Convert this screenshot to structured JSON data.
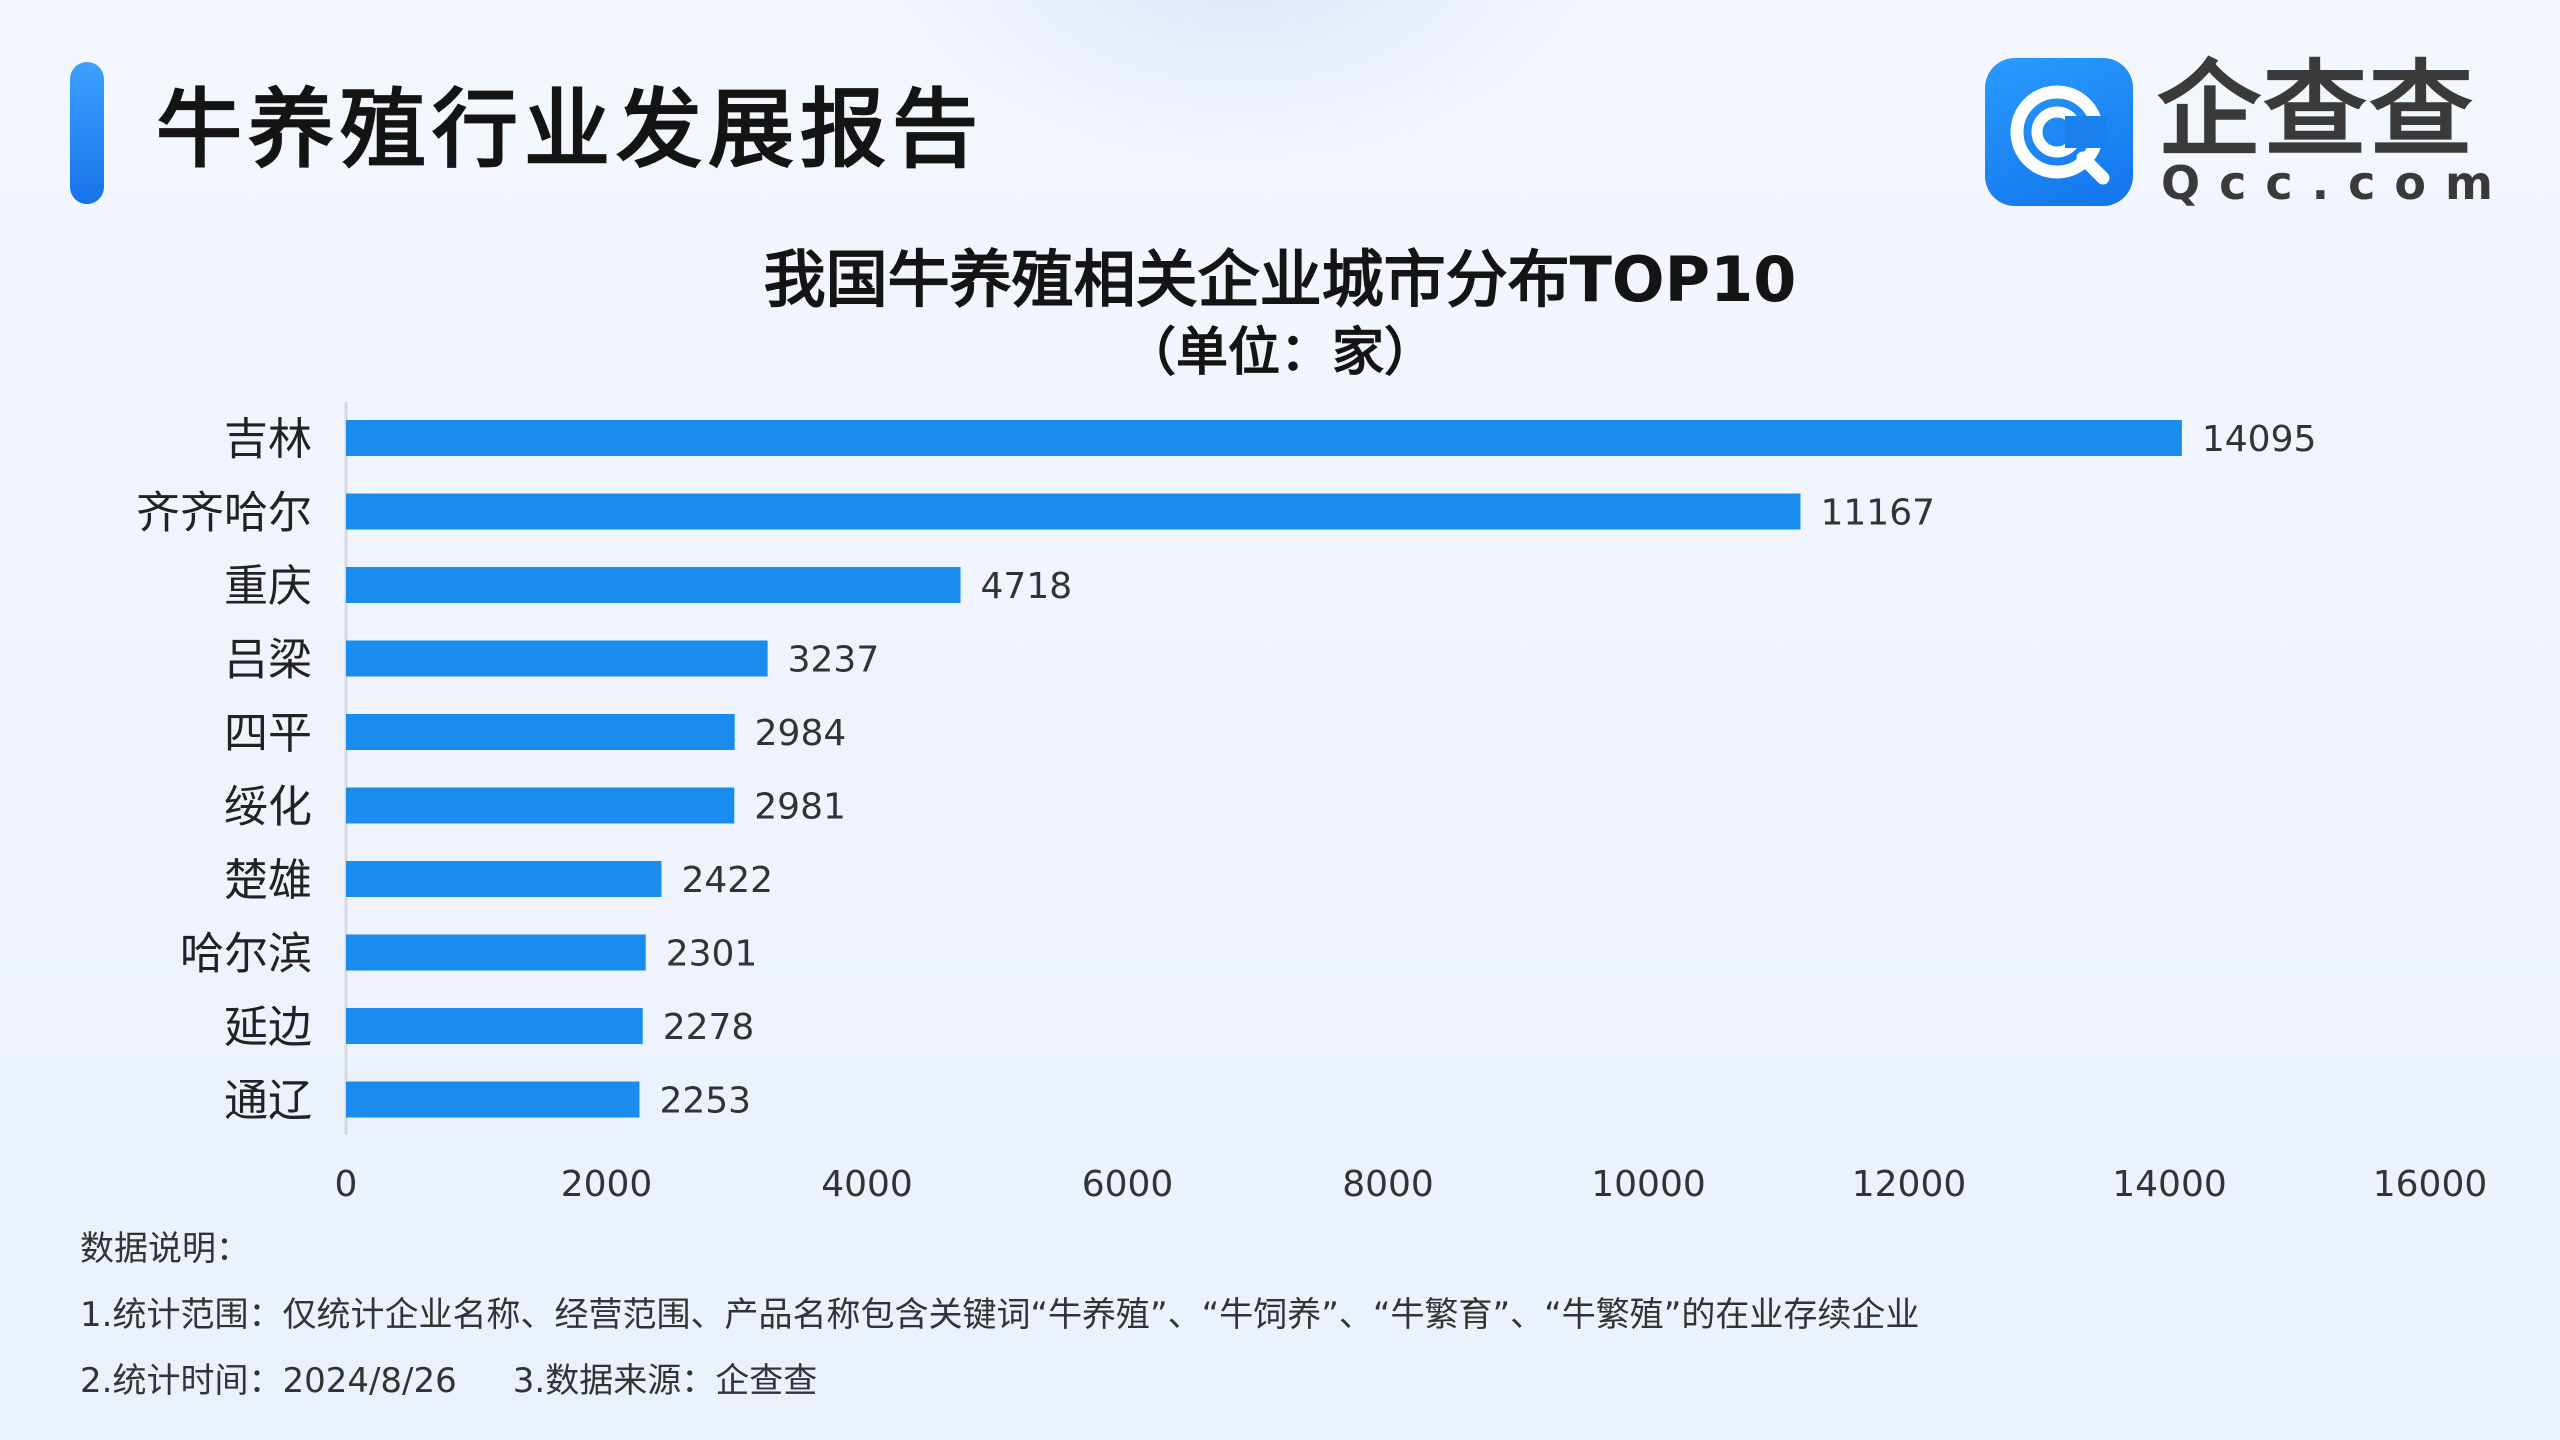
{
  "header": {
    "title": "牛养殖行业发展报告",
    "logo_name": "企查查",
    "logo_sub": "Qcc.com"
  },
  "colors": {
    "bar": "#1a8cee",
    "accent": "#1f84f5",
    "axis": "#d6dbe3"
  },
  "chart_data": {
    "type": "bar",
    "orientation": "horizontal",
    "title": "我国牛养殖相关企业城市分布TOP10",
    "subtitle": "（单位：家）",
    "categories": [
      "吉林",
      "齐齐哈尔",
      "重庆",
      "吕梁",
      "四平",
      "绥化",
      "楚雄",
      "哈尔滨",
      "延边",
      "通辽"
    ],
    "values": [
      14095,
      11167,
      4718,
      3237,
      2984,
      2981,
      2422,
      2301,
      2278,
      2253
    ],
    "xlim": [
      0,
      16000
    ],
    "xticks": [
      0,
      2000,
      4000,
      6000,
      8000,
      10000,
      12000,
      14000,
      16000
    ],
    "grid": false,
    "data_labels": true
  },
  "notes": {
    "heading": "数据说明：",
    "scope": "1.统计范围：仅统计企业名称、经营范围、产品名称包含关键词“牛养殖”、“牛饲养”、“牛繁育”、“牛繁殖”的在业存续企业",
    "time": "2.统计时间：2024/8/26",
    "source": "3.数据来源：企查查"
  }
}
